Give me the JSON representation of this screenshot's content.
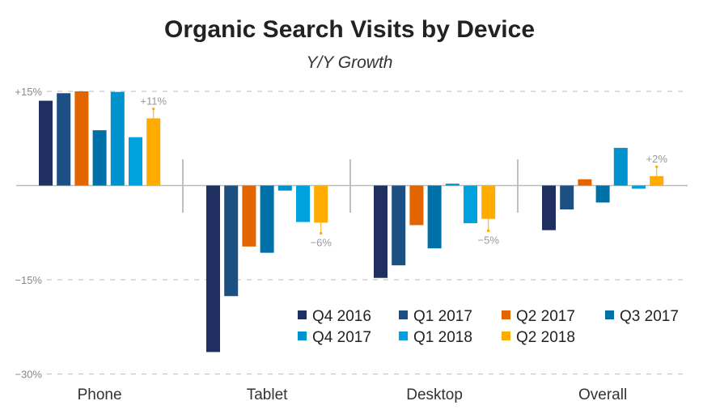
{
  "chart_data": {
    "type": "bar",
    "title": "Organic Search Visits by Device",
    "subtitle": "Y/Y Growth",
    "categories": [
      "Phone",
      "Tablet",
      "Desktop",
      "Overall"
    ],
    "yticks": [
      {
        "value": 15,
        "label": "+15%"
      },
      {
        "value": -15,
        "label": "−15%"
      },
      {
        "value": -30,
        "label": "−30%"
      }
    ],
    "ylim": [
      -30,
      15
    ],
    "grid": "dashed horizontal at tick values",
    "legend_position": "bottom-right inside",
    "series": [
      {
        "name": "Q4 2016",
        "color": "#1f3060",
        "values": [
          13.5,
          -26.5,
          -14.7,
          -7.1
        ]
      },
      {
        "name": "Q1 2017",
        "color": "#1c4f82",
        "values": [
          14.7,
          -17.6,
          -12.7,
          -3.8
        ]
      },
      {
        "name": "Q2 2017",
        "color": "#e26500",
        "values": [
          15.0,
          -9.7,
          -6.3,
          1.0
        ]
      },
      {
        "name": "Q3 2017",
        "color": "#0070a8",
        "values": [
          8.8,
          -10.7,
          -10.0,
          -2.7
        ]
      },
      {
        "name": "Q4 2017",
        "color": "#0092cc",
        "values": [
          14.9,
          -0.8,
          0.3,
          6.0
        ]
      },
      {
        "name": "Q1 2018",
        "color": "#00a2de",
        "values": [
          7.7,
          -5.8,
          -6.0,
          -0.5
        ]
      },
      {
        "name": "Q2 2018",
        "color": "#ffab00",
        "values": [
          10.7,
          -5.9,
          -5.3,
          1.5
        ],
        "error_ends": [
          12.2,
          -7.6,
          -7.2,
          3.0
        ],
        "data_labels": [
          "+11%",
          "−6%",
          "−5%",
          "+2%"
        ]
      }
    ]
  }
}
